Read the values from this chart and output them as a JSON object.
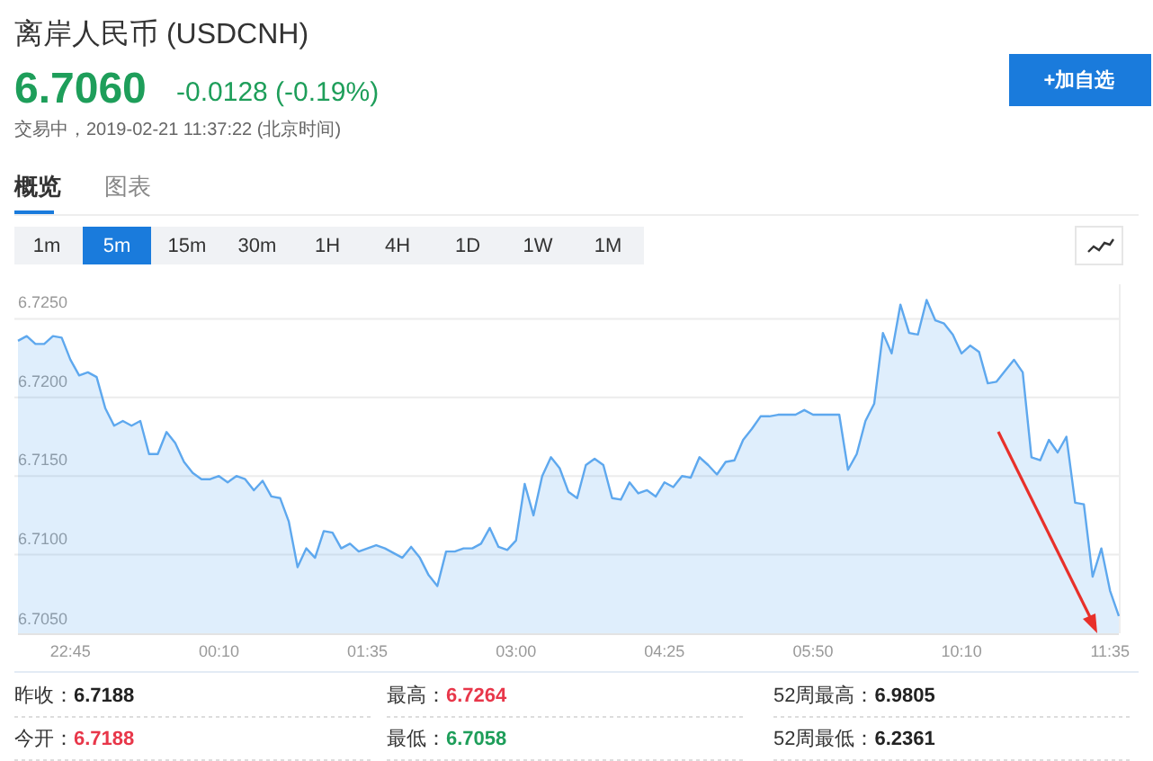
{
  "chart_data": {
    "type": "area",
    "title": "离岸人民币 (USDCNH)",
    "categories": [
      null,
      null,
      null,
      null,
      null,
      null,
      "22:45",
      null,
      null,
      null,
      null,
      null,
      null,
      null,
      null,
      null,
      null,
      null,
      null,
      null,
      null,
      null,
      null,
      "00:10",
      null,
      null,
      null,
      null,
      null,
      null,
      null,
      null,
      null,
      null,
      null,
      null,
      null,
      null,
      null,
      null,
      "01:35",
      null,
      null,
      null,
      null,
      null,
      null,
      null,
      null,
      null,
      null,
      null,
      null,
      null,
      null,
      null,
      null,
      "03:00",
      null,
      null,
      null,
      null,
      null,
      null,
      null,
      null,
      null,
      null,
      null,
      null,
      null,
      null,
      null,
      null,
      "04:25",
      null,
      null,
      null,
      null,
      null,
      null,
      null,
      null,
      null,
      null,
      null,
      null,
      null,
      null,
      null,
      null,
      "05:50",
      null,
      null,
      null,
      null,
      null,
      null,
      null,
      null,
      null,
      null,
      null,
      null,
      null,
      null,
      null,
      null,
      "10:10",
      null,
      null,
      null,
      null,
      null,
      null,
      null,
      null,
      null,
      null,
      null,
      null,
      null,
      null,
      null,
      null,
      "11:35",
      null
    ],
    "series": [
      {
        "color": "#5ea8ee",
        "values": [
          6.7236,
          6.7239,
          6.7234,
          6.7234,
          6.7239,
          6.7238,
          6.7224,
          6.7214,
          6.7216,
          6.7213,
          6.7193,
          6.7182,
          6.7185,
          6.7182,
          6.7185,
          6.7164,
          6.7164,
          6.7178,
          6.7171,
          6.7159,
          6.7152,
          6.7148,
          6.7148,
          6.715,
          6.7146,
          6.715,
          6.7148,
          6.7141,
          6.7147,
          6.7137,
          6.7136,
          6.7121,
          6.7092,
          6.7104,
          6.7098,
          6.7115,
          6.7114,
          6.7104,
          6.7107,
          6.7102,
          6.7104,
          6.7106,
          6.7104,
          6.7101,
          6.7098,
          6.7105,
          6.7098,
          6.7087,
          6.708,
          6.7102,
          6.7102,
          6.7104,
          6.7104,
          6.7107,
          6.7117,
          6.7105,
          6.7103,
          6.7109,
          6.7145,
          6.7125,
          6.715,
          6.7162,
          6.7155,
          6.714,
          6.7136,
          6.7157,
          6.7161,
          6.7157,
          6.7136,
          6.7135,
          6.7146,
          6.7139,
          6.7141,
          6.7137,
          6.7146,
          6.7143,
          6.715,
          6.7149,
          6.7162,
          6.7157,
          6.7151,
          6.7159,
          6.716,
          6.7173,
          6.718,
          6.7188,
          6.7188,
          6.7189,
          6.7189,
          6.7189,
          6.7192,
          6.7189,
          6.7189,
          6.7189,
          6.7189,
          6.7154,
          6.7164,
          6.7185,
          6.7196,
          6.7241,
          6.7228,
          6.7259,
          6.7241,
          6.724,
          6.7262,
          6.7249,
          6.7247,
          6.724,
          6.7228,
          6.7233,
          6.7229,
          6.7209,
          6.721,
          6.7217,
          6.7224,
          6.7216,
          6.7162,
          6.716,
          6.7173,
          6.7165,
          6.7175,
          6.7133,
          6.7132,
          6.7086,
          6.7104,
          6.7077,
          6.7061
        ]
      }
    ],
    "ylim": [
      6.705,
      6.7272
    ],
    "yticks": [
      {
        "value": 6.705,
        "label": "6.7050"
      },
      {
        "value": 6.71,
        "label": "6.7100"
      },
      {
        "value": 6.715,
        "label": "6.7150"
      },
      {
        "value": 6.72,
        "label": "6.7200"
      },
      {
        "value": 6.725,
        "label": "6.7250"
      }
    ],
    "grid": "y",
    "annotations": [
      "6.7060",
      "-0.0128 (-0.19%)",
      "交易中，2019-02-21 11:37:22 (北京时间)",
      "+加自选",
      "概览",
      "图表",
      "1m",
      "5m",
      "15m",
      "30m",
      "1H",
      "4H",
      "1D",
      "1W",
      "1M",
      "昨收：",
      "6.7188",
      "最高：",
      "6.7264",
      "52周最高：",
      "6.9805",
      "今开：",
      "6.7188",
      "最低：",
      "6.7058",
      "52周最低：",
      "6.2361"
    ]
  }
}
